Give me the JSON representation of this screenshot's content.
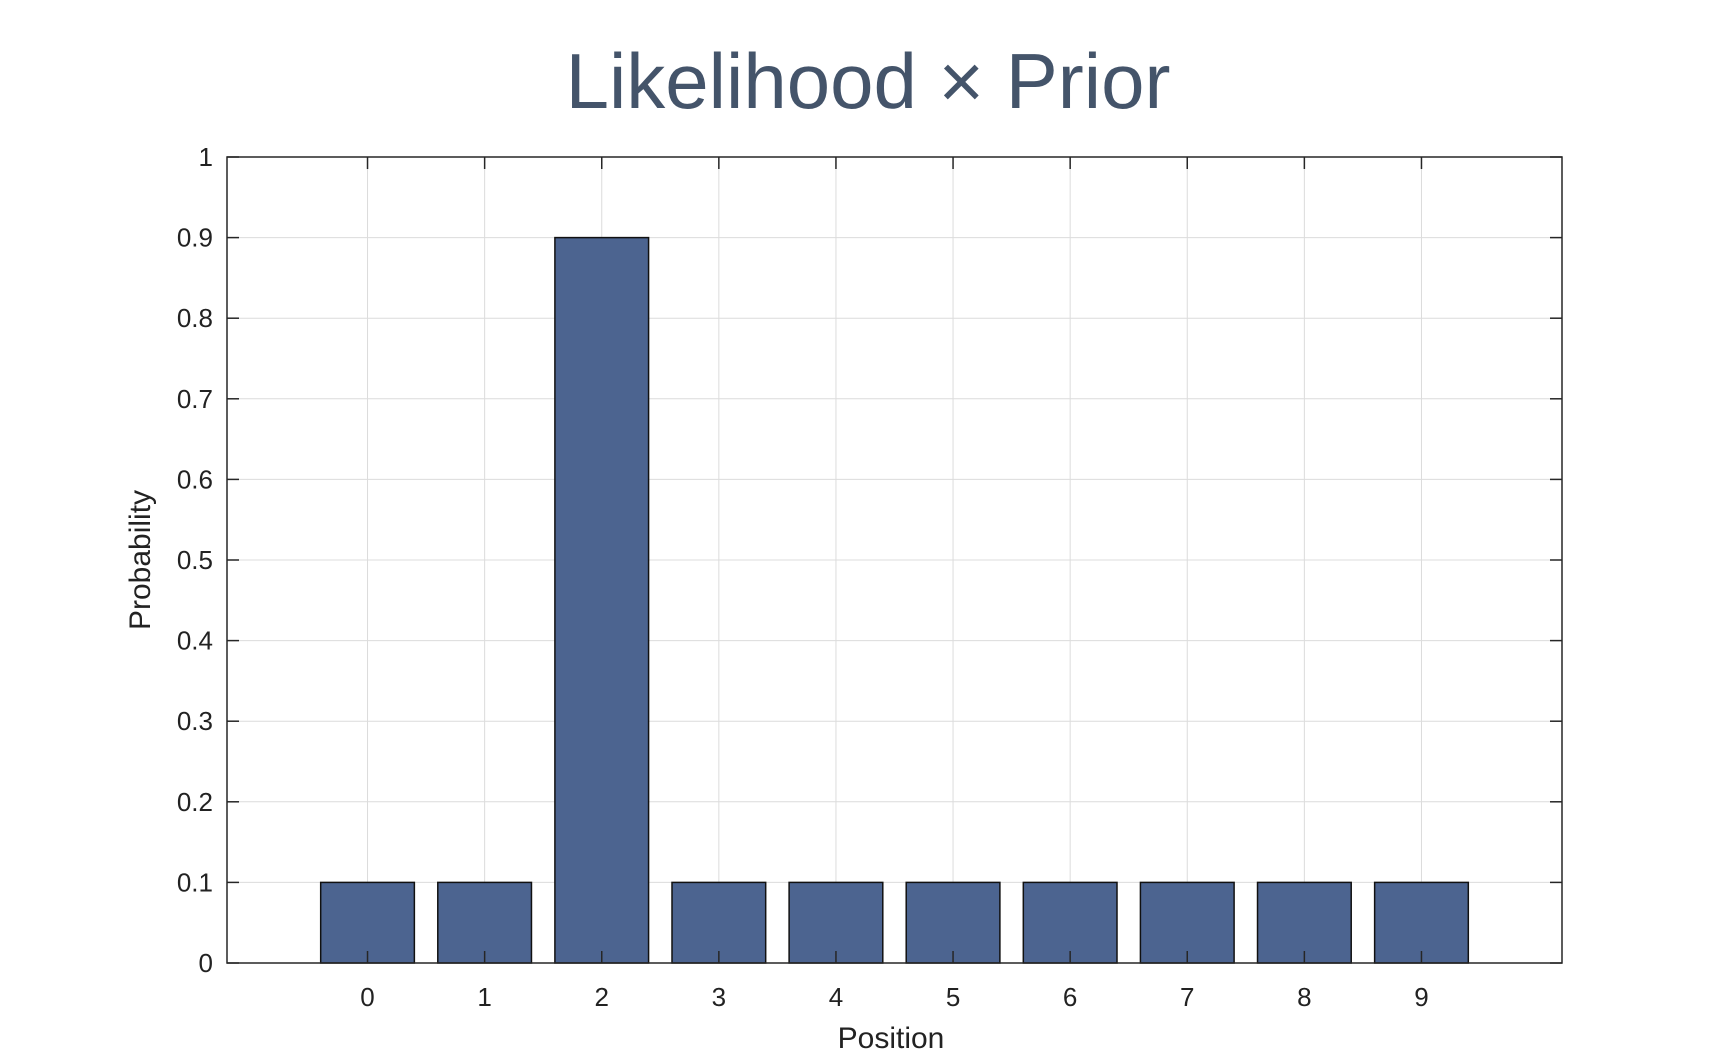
{
  "chart_data": {
    "type": "bar",
    "title": "Likelihood × Prior",
    "xlabel": "Position",
    "ylabel": "Probability",
    "categories": [
      "0",
      "1",
      "2",
      "3",
      "4",
      "5",
      "6",
      "7",
      "8",
      "9"
    ],
    "values": [
      0.1,
      0.1,
      0.9,
      0.1,
      0.1,
      0.1,
      0.1,
      0.1,
      0.1,
      0.1
    ],
    "ylim": [
      0,
      1
    ],
    "xlim": [
      -1.2,
      10.2
    ],
    "yticks": [
      "0",
      "0.1",
      "0.2",
      "0.3",
      "0.4",
      "0.5",
      "0.6",
      "0.7",
      "0.8",
      "0.9",
      "1"
    ],
    "grid": true,
    "bar_color": "#4c6490",
    "title_color": "#44546a"
  }
}
